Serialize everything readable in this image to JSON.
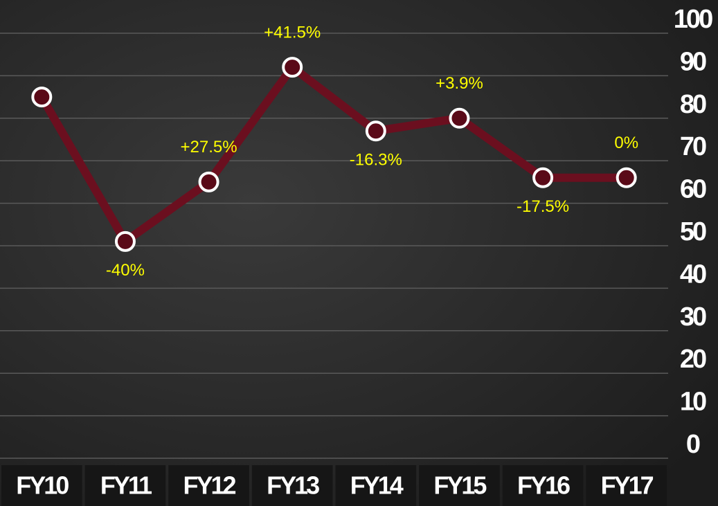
{
  "chart_data": {
    "type": "line",
    "categories": [
      "FY10",
      "FY11",
      "FY12",
      "FY13",
      "FY14",
      "FY15",
      "FY16",
      "FY17"
    ],
    "values": [
      85,
      51,
      65,
      92,
      77,
      80,
      66,
      66
    ],
    "annotations": [
      null,
      "-40%",
      "+27.5%",
      "+41.5%",
      "-16.3%",
      "+3.9%",
      "-17.5%",
      "0%"
    ],
    "color": "#6b0f1f",
    "ylim": [
      0,
      100
    ],
    "yticks": [
      0,
      10,
      20,
      30,
      40,
      50,
      60,
      70,
      80,
      90,
      100
    ],
    "grid": true
  }
}
